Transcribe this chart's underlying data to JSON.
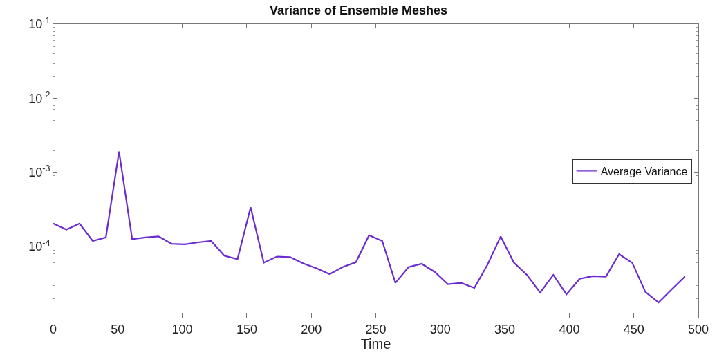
{
  "chart_data": {
    "type": "line",
    "title": "Variance of Ensemble Meshes",
    "xlabel": "Time",
    "x": [
      0,
      10.2,
      20.4,
      30.6,
      40.8,
      51,
      61.2,
      71.4,
      81.6,
      91.8,
      102,
      112.2,
      122.4,
      132.6,
      142.8,
      153,
      163.2,
      173.4,
      183.6,
      193.8,
      204,
      214.2,
      224.4,
      234.6,
      244.8,
      255,
      265.2,
      275.4,
      285.6,
      295.8,
      306,
      316.2,
      326.4,
      336.6,
      346.8,
      357,
      367.2,
      377.4,
      387.6,
      397.8,
      408,
      418.2,
      428.4,
      438.6,
      448.8,
      459,
      469.2,
      479.4,
      489.6
    ],
    "series": [
      {
        "name": "Average Variance",
        "color": "#6b2bd0",
        "values": [
          0.000204,
          0.000169,
          0.000204,
          0.000119,
          0.000133,
          0.00191,
          0.000126,
          0.000133,
          0.000137,
          0.000109,
          0.000107,
          0.000114,
          0.000119,
          7.55e-05,
          6.76e-05,
          0.000339,
          6.05e-05,
          7.33e-05,
          7.22e-05,
          5.92e-05,
          5.1e-05,
          4.25e-05,
          5.3e-05,
          6.14e-05,
          0.000142,
          0.000119,
          3.24e-05,
          5.3e-05,
          5.86e-05,
          4.53e-05,
          3.1e-05,
          3.24e-05,
          2.77e-05,
          5.7e-05,
          0.000137,
          6.08e-05,
          4.14e-05,
          2.4e-05,
          4.15e-05,
          2.27e-05,
          3.68e-05,
          3.99e-05,
          3.94e-05,
          7.91e-05,
          6.03e-05,
          2.44e-05,
          1.76e-05,
          2.65e-05,
          3.94e-05
        ]
      }
    ],
    "xlim": [
      0,
      500
    ],
    "xticks": [
      0,
      50,
      100,
      150,
      200,
      250,
      300,
      350,
      400,
      450,
      500
    ],
    "ylim": [
      1.1e-05,
      0.1
    ],
    "log": "y",
    "yticks": [
      {
        "value": 0.0001,
        "label": "10$^{-4}$"
      },
      {
        "value": 0.001,
        "label": "10$^{-3}$"
      },
      {
        "value": 0.01,
        "label": "10$^{-2}$"
      },
      {
        "value": 0.1,
        "label": "10$^{-1}$"
      }
    ],
    "legend": "right",
    "marker": "none",
    "line_style": "solid"
  }
}
